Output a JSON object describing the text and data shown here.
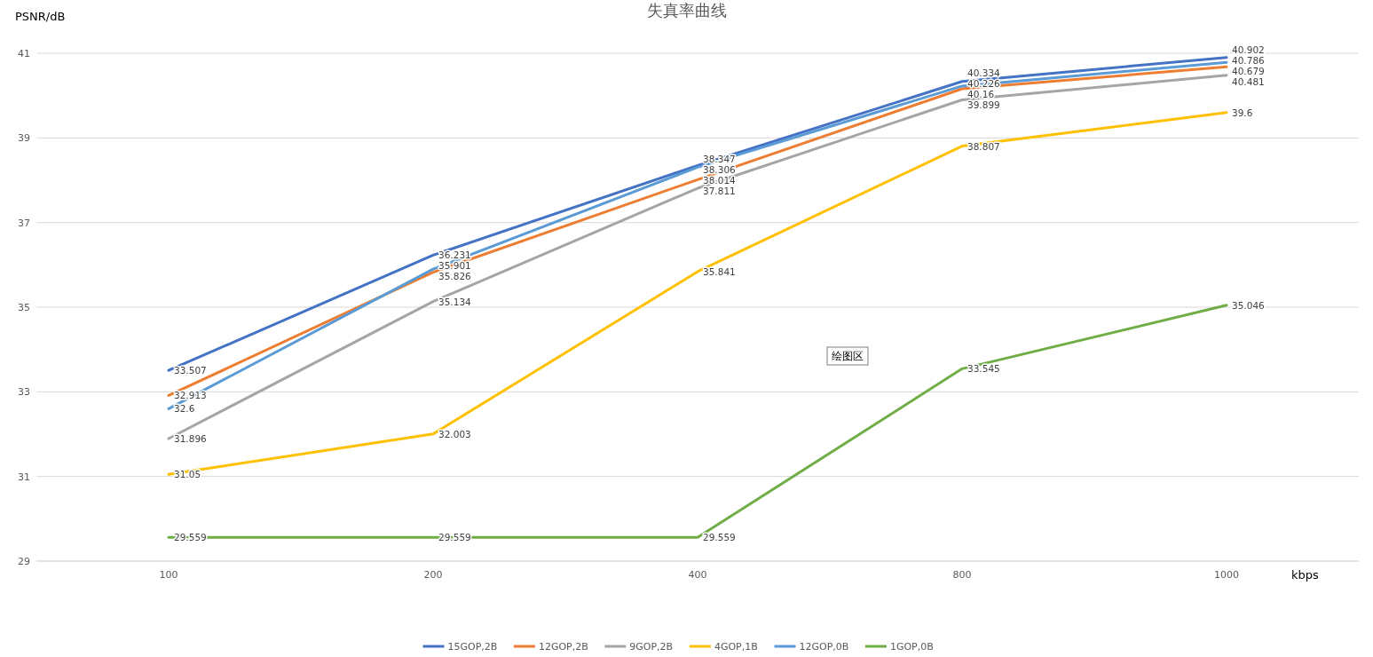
{
  "chart_data": {
    "type": "line",
    "title": "失真率曲线",
    "xlabel": "kbps",
    "ylabel": "PSNR/dB",
    "categories": [
      "100",
      "200",
      "400",
      "800",
      "1000"
    ],
    "series": [
      {
        "name": "15GOP,2B",
        "color": "#4472c4",
        "values": [
          33.507,
          36.231,
          38.347,
          40.334,
          40.902
        ]
      },
      {
        "name": "12GOP,2B",
        "color": "#ed7d31",
        "values": [
          32.913,
          35.826,
          38.014,
          40.16,
          40.679
        ]
      },
      {
        "name": "9GOP,2B",
        "color": "#a5a5a5",
        "values": [
          31.896,
          35.134,
          37.811,
          39.899,
          40.481
        ]
      },
      {
        "name": "4GOP,1B",
        "color": "#ffc000",
        "values": [
          31.05,
          32.003,
          35.841,
          38.807,
          39.6
        ]
      },
      {
        "name": "12GOP,0B",
        "color": "#5b9bd5",
        "values": [
          32.6,
          35.901,
          38.306,
          40.226,
          40.786
        ]
      },
      {
        "name": "1GOP,0B",
        "color": "#70ad47",
        "values": [
          29.559,
          29.559,
          29.559,
          33.545,
          35.046
        ]
      }
    ],
    "ylim": [
      29,
      41
    ],
    "yticks": [
      29,
      31,
      33,
      35,
      37,
      39,
      41
    ],
    "grid": "y",
    "legend": "bottom",
    "data_labels": true,
    "marker": "none",
    "line_style": "solid",
    "annotations": [
      "绘图区"
    ]
  }
}
